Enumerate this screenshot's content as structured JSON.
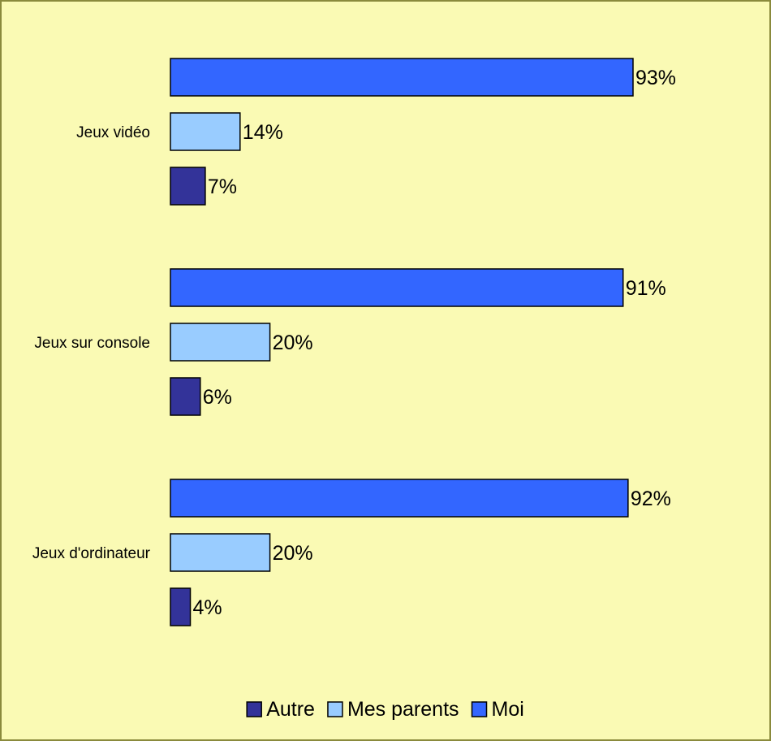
{
  "chart_data": {
    "type": "bar",
    "orientation": "horizontal",
    "categories": [
      "Jeux vidéo",
      "Jeux sur console",
      "Jeux d'ordinateur"
    ],
    "series": [
      {
        "name": "Moi",
        "values": [
          93,
          91,
          92
        ],
        "color": "#3366ff"
      },
      {
        "name": "Mes parents",
        "values": [
          14,
          20,
          20
        ],
        "color": "#99ccff"
      },
      {
        "name": "Autre",
        "values": [
          7,
          6,
          4
        ],
        "color": "#333399"
      }
    ],
    "value_suffix": "%",
    "xlim": [
      0,
      100
    ],
    "grid": false,
    "legend": {
      "position": "bottom",
      "order": [
        "Autre",
        "Mes parents",
        "Moi"
      ]
    }
  }
}
